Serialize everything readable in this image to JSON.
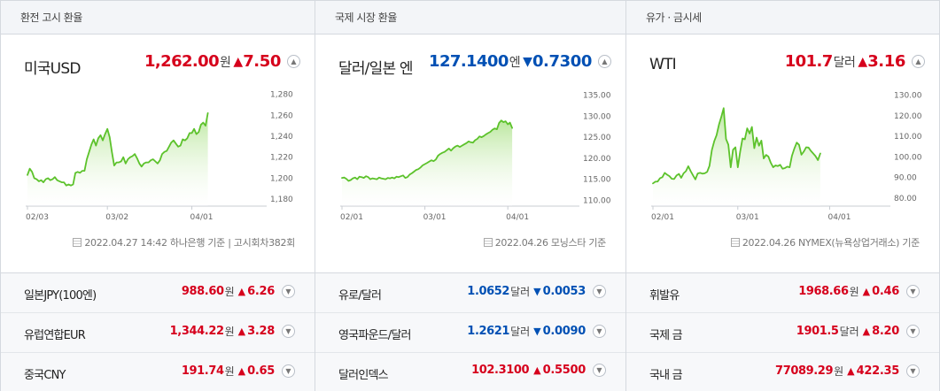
{
  "panels": [
    {
      "header": "환전 고시 환율",
      "main": {
        "name": "미국USD",
        "value": "1,262.00",
        "unit": "원",
        "arrow": "▲",
        "change": "7.50",
        "dir": "up"
      },
      "source": "2022.04.27 14:42 하나은행 기준 | 고시회차382회",
      "rows": [
        {
          "name": "일본JPY(100엔)",
          "value": "988.60",
          "unit": "원",
          "arrow": "▲",
          "change": "6.26",
          "dir": "up"
        },
        {
          "name": "유럽연합EUR",
          "value": "1,344.22",
          "unit": "원",
          "arrow": "▲",
          "change": "3.28",
          "dir": "up"
        },
        {
          "name": "중국CNY",
          "value": "191.74",
          "unit": "원",
          "arrow": "▲",
          "change": "0.65",
          "dir": "up"
        }
      ]
    },
    {
      "header": "국제 시장 환율",
      "main": {
        "name": "달러/일본 엔",
        "value": "127.1400",
        "unit": "엔",
        "arrow": "▼",
        "change": "0.7300",
        "dir": "dn"
      },
      "source": "2022.04.26 모닝스타 기준",
      "rows": [
        {
          "name": "유로/달러",
          "value": "1.0652",
          "unit": "달러",
          "arrow": "▼",
          "change": "0.0053",
          "dir": "dn"
        },
        {
          "name": "영국파운드/달러",
          "value": "1.2621",
          "unit": "달러",
          "arrow": "▼",
          "change": "0.0090",
          "dir": "dn"
        },
        {
          "name": "달러인덱스",
          "value": "102.3100",
          "unit": "",
          "arrow": "▲",
          "change": "0.5500",
          "dir": "up"
        }
      ]
    },
    {
      "header": "유가 · 금시세",
      "main": {
        "name": "WTI",
        "value": "101.7",
        "unit": "달러",
        "arrow": "▲",
        "change": "3.16",
        "dir": "up"
      },
      "source": "2022.04.26 NYMEX(뉴욕상업거래소) 기준",
      "rows": [
        {
          "name": "휘발유",
          "value": "1968.66",
          "unit": "원",
          "arrow": "▲",
          "change": "0.46",
          "dir": "up"
        },
        {
          "name": "국제 금",
          "value": "1901.5",
          "unit": "달러",
          "arrow": "▲",
          "change": "8.20",
          "dir": "up"
        },
        {
          "name": "국내 금",
          "value": "77089.29",
          "unit": "원",
          "arrow": "▲",
          "change": "422.35",
          "dir": "up"
        }
      ]
    }
  ],
  "icons": {
    "toggle_up": "chevron-up-icon",
    "toggle_down": "chevron-down-icon",
    "source": "document-icon"
  },
  "colors": {
    "up": "#d6001c",
    "down": "#0050b4",
    "line": "#5cc22b",
    "fill_top": "#b8e69a"
  },
  "chart_data": [
    {
      "type": "area",
      "x_labels": [
        "02/03",
        "03/02",
        "04/01"
      ],
      "x_label_pos": [
        0,
        35,
        72
      ],
      "yticks": [
        "1,180",
        "1,200",
        "1,220",
        "1,240",
        "1,260",
        "1,280"
      ],
      "ylim": [
        1175,
        1283
      ],
      "xmax": 104,
      "values": [
        1203,
        1209,
        1206,
        1200,
        1199,
        1197,
        1198,
        1196,
        1199,
        1200,
        1198,
        1199,
        1201,
        1198,
        1197,
        1196,
        1196,
        1193,
        1194,
        1193,
        1194,
        1205,
        1206,
        1205,
        1207,
        1207,
        1218,
        1225,
        1232,
        1237,
        1231,
        1238,
        1241,
        1236,
        1242,
        1247,
        1239,
        1225,
        1212,
        1215,
        1215,
        1216,
        1220,
        1214,
        1218,
        1220,
        1221,
        1223,
        1219,
        1214,
        1211,
        1214,
        1215,
        1215,
        1217,
        1218,
        1216,
        1214,
        1217,
        1223,
        1225,
        1226,
        1230,
        1234,
        1236,
        1233,
        1230,
        1231,
        1237,
        1236,
        1238,
        1243,
        1243,
        1247,
        1242,
        1244,
        1251,
        1253,
        1250,
        1262
      ]
    },
    {
      "type": "area",
      "x_labels": [
        "02/01",
        "03/01",
        "04/01"
      ],
      "x_label_pos": [
        0,
        38,
        76
      ],
      "yticks": [
        "110.00",
        "115.00",
        "120.00",
        "125.00",
        "130.00",
        "135.00"
      ],
      "ylim": [
        109,
        136
      ],
      "xmax": 108,
      "values": [
        115.3,
        115.4,
        115.1,
        114.6,
        114.8,
        115.2,
        115.4,
        115.0,
        115.6,
        115.5,
        115.3,
        115.7,
        115.5,
        115.0,
        115.2,
        115.1,
        115.0,
        115.4,
        115.2,
        115.1,
        115.0,
        115.3,
        115.2,
        115.4,
        115.2,
        115.6,
        115.5,
        115.7,
        115.9,
        115.3,
        115.5,
        116.1,
        116.4,
        116.8,
        117.2,
        117.4,
        117.8,
        118.3,
        118.6,
        118.9,
        119.2,
        119.5,
        119.3,
        119.7,
        120.6,
        121.0,
        121.3,
        121.5,
        121.9,
        122.3,
        121.8,
        122.4,
        122.8,
        123.0,
        122.7,
        123.0,
        123.3,
        123.6,
        124.0,
        123.8,
        123.7,
        124.3,
        124.6,
        125.2,
        125.0,
        125.3,
        125.7,
        126.0,
        126.3,
        126.8,
        127.1,
        126.9,
        128.4,
        129.0,
        128.6,
        128.8,
        128.1,
        128.5,
        127.2
      ]
    },
    {
      "type": "area",
      "x_labels": [
        "02/01",
        "03/01",
        "04/01"
      ],
      "x_label_pos": [
        0,
        36,
        75
      ],
      "yticks": [
        "80.00",
        "90.00",
        "100.00",
        "110.00",
        "120.00",
        "130.00"
      ],
      "ylim": [
        77,
        132
      ],
      "xmax": 100,
      "values": [
        87.2,
        88.0,
        88.1,
        89.7,
        90.2,
        92.3,
        91.4,
        90.7,
        89.4,
        89.3,
        91.0,
        91.8,
        89.9,
        92.1,
        93.1,
        95.5,
        93.1,
        91.1,
        89.1,
        92.0,
        92.3,
        91.9,
        92.1,
        92.8,
        95.7,
        103.4,
        107.7,
        110.6,
        115.7,
        119.4,
        123.7,
        108.7,
        106.0,
        95.0,
        103.5,
        104.7,
        95.0,
        102.5,
        109.0,
        108.6,
        113.9,
        111.4,
        114.6,
        104.3,
        109.4,
        105.5,
        108.0,
        99.3,
        101.0,
        100.2,
        97.2,
        95.0,
        95.9,
        95.6,
        96.2,
        94.3,
        94.6,
        95.3,
        95.0,
        100.6,
        104.1,
        107.0,
        105.9,
        101.1,
        102.6,
        104.7,
        104.6,
        103.0,
        101.7,
        100.4,
        98.5,
        101.7
      ]
    }
  ]
}
